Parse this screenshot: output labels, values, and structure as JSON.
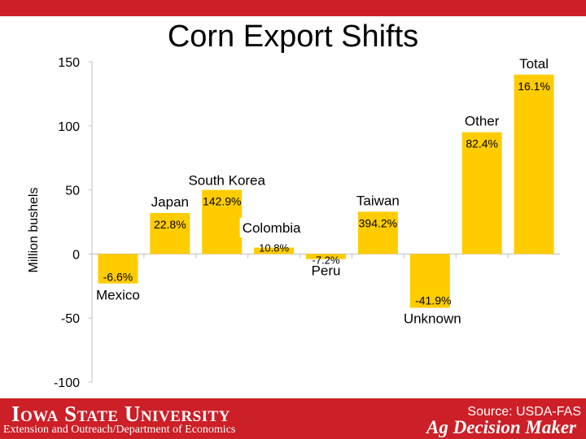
{
  "title": "Corn Export Shifts",
  "chart_data": {
    "type": "bar",
    "ylabel": "Million bushels",
    "ylim": [
      -100,
      150
    ],
    "yticks": [
      150,
      100,
      50,
      0,
      -50,
      -100
    ],
    "categories": [
      "Mexico",
      "Japan",
      "South Korea",
      "Colombia",
      "Peru",
      "Taiwan",
      "Unknown",
      "Other",
      "Total"
    ],
    "values": [
      -23,
      32,
      50,
      5,
      -4,
      33,
      -42,
      95,
      140
    ],
    "pct_labels": [
      "-6.6%",
      "22.8%",
      "142.9%",
      "10.8%",
      "-7.2%",
      "394.2%",
      "-41.9%",
      "82.4%",
      "16.1%"
    ],
    "bar_color": "#ffcc00"
  },
  "footer": {
    "university": "Iowa State University",
    "department": "Extension and Outreach/Department of Economics",
    "source": "Source: USDA-FAS",
    "program": "Ag Decision Maker"
  },
  "colors": {
    "brand_red": "#cc1f27",
    "bar": "#ffcc00"
  }
}
